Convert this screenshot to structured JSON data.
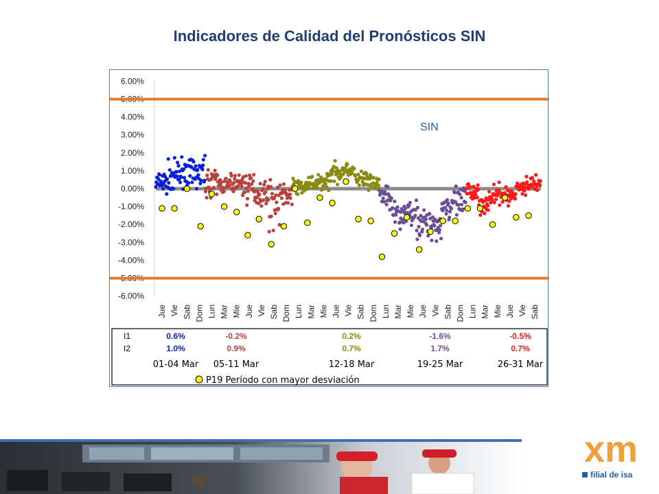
{
  "page": {
    "title": "Indicadores de Calidad del Pronósticos SIN"
  },
  "colors": {
    "title": "#1f3f73",
    "limit_line": "#e07b2c",
    "zero_line": "#8c8c8c",
    "marker_fill": "#ffff00",
    "week1": "#0b1fd9",
    "week2": "#b8433e",
    "week3": "#8a8a12",
    "week4": "#6b4f96",
    "week5": "#ff1a1a"
  },
  "chart_data": {
    "type": "scatter",
    "annotation": "SIN",
    "ylim": [
      -0.06,
      0.06
    ],
    "y_ticks": [
      "6.00%",
      "5.00%",
      "4.00%",
      "3.00%",
      "2.00%",
      "1.00%",
      "0.00%",
      "-1.00%",
      "-2.00%",
      "-3.00%",
      "-4.00%",
      "-5.00%",
      "-6.00%"
    ],
    "limit_lines": [
      0.05,
      -0.05
    ],
    "zero_line": 0,
    "grid": false,
    "categories": [
      "Jue",
      "Vie",
      "Sab",
      "Dom",
      "Lun",
      "Mar",
      "Mie",
      "Jue",
      "Vie",
      "Sab",
      "Dom",
      "Lun",
      "Mar",
      "Mie",
      "Jue",
      "Vie",
      "Sab",
      "Dom",
      "Lun",
      "Mar",
      "Mie",
      "Jue",
      "Vie",
      "Sab",
      "Dom",
      "Lun",
      "Mar",
      "Mie",
      "Jue",
      "Vie",
      "Sab"
    ],
    "series": [
      {
        "week": 0,
        "start": 0,
        "days": 4,
        "profiles": [
          [
            0.003,
            0.01
          ],
          [
            0.007,
            0.012
          ],
          [
            0.009,
            0.011
          ],
          [
            0.008,
            0.012
          ]
        ]
      },
      {
        "week": 1,
        "start": 4,
        "days": 7,
        "profiles": [
          [
            0.004,
            0.01
          ],
          [
            0.002,
            0.007
          ],
          [
            0.003,
            0.008
          ],
          [
            0.001,
            0.012
          ],
          [
            -0.002,
            0.01
          ],
          [
            -0.008,
            0.018
          ],
          [
            -0.003,
            0.009
          ]
        ]
      },
      {
        "week": 2,
        "start": 11,
        "days": 7,
        "profiles": [
          [
            0.001,
            0.006
          ],
          [
            0.002,
            0.007
          ],
          [
            0.004,
            0.007
          ],
          [
            0.009,
            0.008
          ],
          [
            0.011,
            0.006
          ],
          [
            0.005,
            0.008
          ],
          [
            0.003,
            0.008
          ]
        ]
      },
      {
        "week": 3,
        "start": 18,
        "days": 7,
        "profiles": [
          [
            -0.004,
            0.009
          ],
          [
            -0.015,
            0.012
          ],
          [
            -0.013,
            0.01
          ],
          [
            -0.019,
            0.013
          ],
          [
            -0.02,
            0.012
          ],
          [
            -0.01,
            0.012
          ],
          [
            -0.008,
            0.013
          ]
        ]
      },
      {
        "week": 4,
        "start": 25,
        "days": 6,
        "profiles": [
          [
            -0.002,
            0.008
          ],
          [
            -0.008,
            0.009
          ],
          [
            -0.004,
            0.008
          ],
          [
            -0.004,
            0.007
          ],
          [
            0.001,
            0.007
          ],
          [
            0.003,
            0.006
          ]
        ]
      }
    ],
    "max_deviation_points": [
      {
        "x": 0.5,
        "y": -0.011
      },
      {
        "x": 1.5,
        "y": -0.011
      },
      {
        "x": 2.5,
        "y": 0.0
      },
      {
        "x": 3.6,
        "y": -0.021
      },
      {
        "x": 4.5,
        "y": -0.003
      },
      {
        "x": 5.5,
        "y": -0.01
      },
      {
        "x": 6.5,
        "y": -0.013
      },
      {
        "x": 7.4,
        "y": -0.026
      },
      {
        "x": 8.3,
        "y": -0.017
      },
      {
        "x": 9.3,
        "y": -0.031
      },
      {
        "x": 10.3,
        "y": -0.021
      },
      {
        "x": 11.2,
        "y": 0.0
      },
      {
        "x": 12.2,
        "y": -0.019
      },
      {
        "x": 13.2,
        "y": -0.005
      },
      {
        "x": 14.2,
        "y": -0.008
      },
      {
        "x": 15.3,
        "y": 0.004
      },
      {
        "x": 16.3,
        "y": -0.017
      },
      {
        "x": 17.3,
        "y": -0.018
      },
      {
        "x": 18.2,
        "y": -0.038
      },
      {
        "x": 19.2,
        "y": -0.025
      },
      {
        "x": 20.2,
        "y": -0.016
      },
      {
        "x": 21.2,
        "y": -0.034
      },
      {
        "x": 22.1,
        "y": -0.024
      },
      {
        "x": 23.1,
        "y": -0.018
      },
      {
        "x": 24.1,
        "y": -0.018
      },
      {
        "x": 25.1,
        "y": -0.011
      },
      {
        "x": 26.1,
        "y": -0.011
      },
      {
        "x": 27.1,
        "y": -0.02
      },
      {
        "x": 28.1,
        "y": -0.005
      },
      {
        "x": 29.0,
        "y": -0.016
      },
      {
        "x": 30.0,
        "y": -0.015
      }
    ],
    "indicator_table": {
      "rows": [
        "I1",
        "I2"
      ],
      "values": [
        [
          "0.6%",
          "-0.2%",
          "0.2%",
          "-1.6%",
          "-0.5%"
        ],
        [
          "1.0%",
          "0.9%",
          "0.7%",
          "1.7%",
          "0.7%"
        ]
      ],
      "periods": [
        "01-04 Mar",
        "05-11 Mar",
        "12-18 Mar",
        "19-25 Mar",
        "26-31 Mar"
      ]
    },
    "legend": {
      "marker_label": "P19  Período con mayor desviación"
    }
  },
  "branding": {
    "logo_text": "xm",
    "tagline": "filial de isa"
  }
}
